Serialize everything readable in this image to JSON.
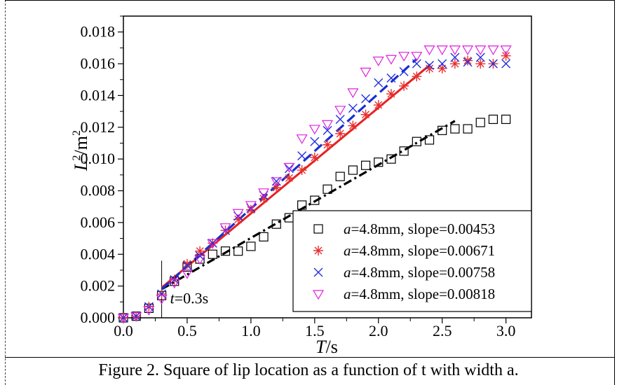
{
  "caption": "Figure 2. Square of lip location as a function of t with width a.",
  "chart_data": {
    "type": "scatter",
    "xlabel": "T/s",
    "ylabel": "L²/m²",
    "xlim": [
      0.0,
      3.2
    ],
    "ylim": [
      0.0,
      0.019
    ],
    "xticks": [
      "0.0",
      "0.5",
      "1.0",
      "1.5",
      "2.0",
      "2.5",
      "3.0"
    ],
    "yticks": [
      "0.000",
      "0.002",
      "0.004",
      "0.006",
      "0.008",
      "0.010",
      "0.012",
      "0.014",
      "0.016",
      "0.018"
    ],
    "grid": false,
    "legend_position": "bottom-right",
    "annotation": {
      "text": "t=0.3s",
      "x": 0.3
    },
    "series": [
      {
        "name": "a=4.8mm, slope=0.00453",
        "marker": "square",
        "color": "#000000",
        "x": [
          0.0,
          0.1,
          0.2,
          0.3,
          0.4,
          0.5,
          0.6,
          0.7,
          0.8,
          0.9,
          1.0,
          1.1,
          1.2,
          1.3,
          1.4,
          1.5,
          1.6,
          1.7,
          1.8,
          1.9,
          2.0,
          2.1,
          2.2,
          2.3,
          2.4,
          2.5,
          2.6,
          2.7,
          2.8,
          2.9,
          3.0
        ],
        "y": [
          0.0,
          0.0001,
          0.0006,
          0.0014,
          0.0023,
          0.0032,
          0.0037,
          0.004,
          0.0042,
          0.0042,
          0.0045,
          0.0051,
          0.0059,
          0.0063,
          0.0071,
          0.0074,
          0.0081,
          0.0089,
          0.0093,
          0.0096,
          0.0098,
          0.01,
          0.0105,
          0.0111,
          0.0112,
          0.0118,
          0.0119,
          0.0119,
          0.0123,
          0.0125,
          0.0125
        ]
      },
      {
        "name": "a=4.8mm, slope=0.00671",
        "marker": "star",
        "color": "#e83030",
        "x": [
          0.0,
          0.1,
          0.2,
          0.3,
          0.4,
          0.5,
          0.6,
          0.7,
          0.8,
          0.9,
          1.0,
          1.1,
          1.2,
          1.3,
          1.4,
          1.5,
          1.6,
          1.7,
          1.8,
          1.9,
          2.0,
          2.1,
          2.2,
          2.3,
          2.4,
          2.5,
          2.6,
          2.7,
          2.8,
          2.9,
          3.0
        ],
        "y": [
          0.0,
          0.0001,
          0.0007,
          0.0015,
          0.0024,
          0.0034,
          0.0042,
          0.0047,
          0.0055,
          0.0062,
          0.0068,
          0.0075,
          0.0082,
          0.0088,
          0.0093,
          0.0101,
          0.0109,
          0.0116,
          0.0121,
          0.0128,
          0.0134,
          0.0141,
          0.0146,
          0.0152,
          0.0157,
          0.0157,
          0.016,
          0.0162,
          0.016,
          0.016,
          0.0165
        ]
      },
      {
        "name": "a=4.8mm, slope=0.00758",
        "marker": "x",
        "color": "#2030e0",
        "x": [
          0.0,
          0.1,
          0.2,
          0.3,
          0.4,
          0.5,
          0.6,
          0.7,
          0.8,
          0.9,
          1.0,
          1.1,
          1.2,
          1.3,
          1.4,
          1.5,
          1.6,
          1.7,
          1.8,
          1.9,
          2.0,
          2.1,
          2.2,
          2.3,
          2.4,
          2.5,
          2.6,
          2.7,
          2.8,
          2.9,
          3.0
        ],
        "y": [
          0.0,
          0.0001,
          0.0007,
          0.0015,
          0.0024,
          0.0033,
          0.0039,
          0.0047,
          0.0055,
          0.0064,
          0.0069,
          0.0077,
          0.0086,
          0.0094,
          0.0102,
          0.0111,
          0.0118,
          0.0125,
          0.0132,
          0.0138,
          0.0148,
          0.0151,
          0.0155,
          0.016,
          0.0159,
          0.016,
          0.0164,
          0.0161,
          0.0164,
          0.016,
          0.016
        ]
      },
      {
        "name": "a=4.8mm, slope=0.00818",
        "marker": "triangle-down",
        "color": "#e020e0",
        "x": [
          0.0,
          0.1,
          0.2,
          0.3,
          0.4,
          0.5,
          0.6,
          0.7,
          0.8,
          0.9,
          1.0,
          1.1,
          1.2,
          1.3,
          1.4,
          1.5,
          1.6,
          1.7,
          1.8,
          1.9,
          2.0,
          2.1,
          2.2,
          2.3,
          2.4,
          2.5,
          2.6,
          2.7,
          2.8,
          2.9,
          3.0
        ],
        "y": [
          0.0,
          0.0001,
          0.0005,
          0.0012,
          0.0022,
          0.0028,
          0.0037,
          0.0047,
          0.0057,
          0.0066,
          0.0071,
          0.0079,
          0.0086,
          0.0095,
          0.0113,
          0.0119,
          0.0122,
          0.0131,
          0.0142,
          0.0155,
          0.0162,
          0.0163,
          0.0165,
          0.0165,
          0.0169,
          0.0169,
          0.0169,
          0.0169,
          0.0169,
          0.0169,
          0.0169
        ]
      }
    ],
    "fit_lines": [
      {
        "style": "dash-dot",
        "color": "#000000",
        "x": [
          0.3,
          2.6
        ],
        "y": [
          0.0018,
          0.0124
        ]
      },
      {
        "style": "solid",
        "color": "#e82020",
        "x": [
          0.3,
          2.4
        ],
        "y": [
          0.0019,
          0.0159
        ]
      },
      {
        "style": "dash",
        "color": "#1a2fd0",
        "x": [
          0.3,
          2.3
        ],
        "y": [
          0.0018,
          0.0163
        ]
      }
    ]
  }
}
